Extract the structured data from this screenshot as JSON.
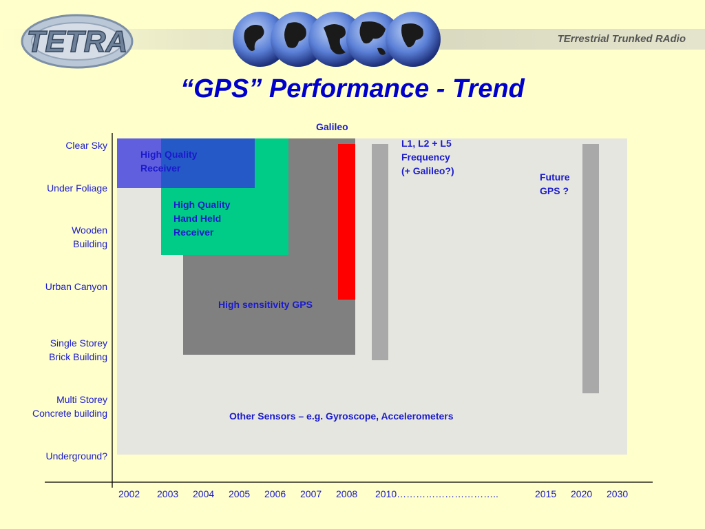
{
  "header": {
    "logo_text": "TETRA",
    "tagline": "TErrestrial Trunked RAdio"
  },
  "slide": {
    "title": "“GPS” Performance - Trend"
  },
  "colors": {
    "background": "#ffffcc",
    "plot_area": "#e6e6e0",
    "text_blue": "#1a1acc",
    "high_quality_receiver": "#5555dd",
    "hand_held_receiver": "#00cc88",
    "high_sensitivity": "#808080",
    "galileo": "#ff0000",
    "l1l2l5": "#a9a9a9",
    "future_gps": "#a9a9a9"
  },
  "chart_data": {
    "type": "range-bar",
    "title": "“GPS” Performance - Trend",
    "y_categories": [
      [
        "Clear Sky"
      ],
      [
        "Under Foliage"
      ],
      [
        "Wooden",
        "Building"
      ],
      [
        "Urban Canyon"
      ],
      [
        "Single Storey",
        "Brick Building"
      ],
      [
        "Multi Storey",
        "Concrete building"
      ],
      [
        "Underground?"
      ]
    ],
    "x_ticks": [
      "2002",
      "2003",
      "2004",
      "2005",
      "2006",
      "2007",
      "2008",
      "2010…………………………..",
      "2015",
      "2020",
      "2030"
    ],
    "series": [
      {
        "name": "Other Sensors – e.g. Gyroscope, Accelerometers",
        "label": [
          "Other Sensors – e.g. Gyroscope, Accelerometers"
        ],
        "start": "2002",
        "end": "2030",
        "from": "Clear Sky",
        "to": "Underground?"
      },
      {
        "name": "High sensitivity GPS",
        "label": [
          "High sensitivity GPS"
        ],
        "start": "2003.5",
        "end": "2008",
        "from": "Clear Sky",
        "to": "Single Storey Brick Building"
      },
      {
        "name": "High Quality Hand Held Receiver",
        "label": [
          "High Quality",
          "Hand Held",
          "Receiver"
        ],
        "start": "2003",
        "end": "2006",
        "from": "Clear Sky",
        "to": "Wooden Building"
      },
      {
        "name": "High Quality Receiver",
        "label": [
          "High Quality",
          "Receiver"
        ],
        "start": "2002",
        "end": "2005",
        "from": "Clear Sky",
        "to": "Under Foliage"
      },
      {
        "name": "Galileo",
        "label": [
          "Galileo"
        ],
        "start": "2008",
        "end": "2008",
        "from": "Clear Sky",
        "to": "Urban Canyon"
      },
      {
        "name": "L1, L2 + L5 Frequency (+ Galileo?)",
        "label": [
          "L1, L2 + L5",
          "Frequency",
          "(+ Galileo?)"
        ],
        "start": "2010",
        "end": "2010",
        "from": "Clear Sky",
        "to": "Single Storey Brick Building"
      },
      {
        "name": "Future GPS ?",
        "label": [
          "Future",
          "GPS ?"
        ],
        "start": "2020",
        "end": "2020",
        "from": "Clear Sky",
        "to": "Multi Storey Concrete building"
      }
    ]
  }
}
